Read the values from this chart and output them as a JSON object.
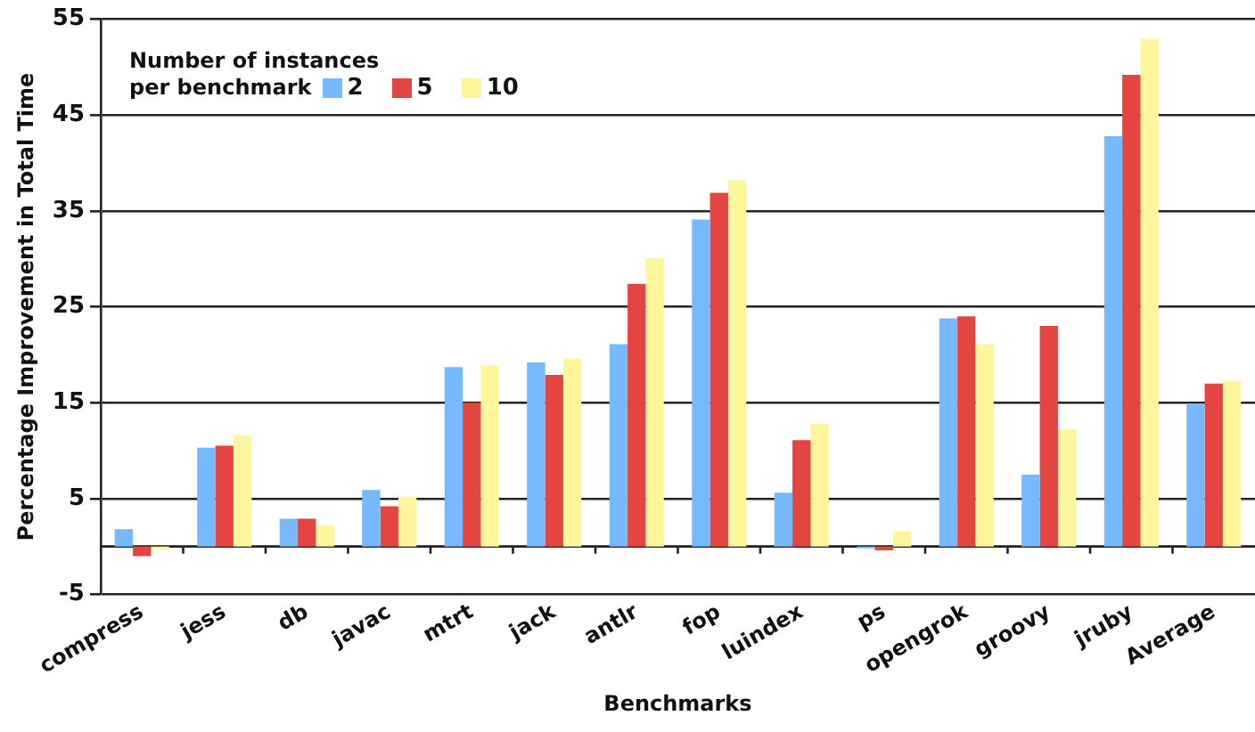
{
  "chart_data": {
    "type": "bar",
    "xlabel": "Benchmarks",
    "ylabel": "Percentage Improvement in Total Time",
    "legend_title": "Number of  instances per benchmark",
    "categories": [
      "compress",
      "jess",
      "db",
      "javac",
      "mtrt",
      "jack",
      "antlr",
      "fop",
      "luindex",
      "ps",
      "opengrok",
      "groovy",
      "jruby",
      "Average"
    ],
    "series": [
      {
        "name": "2",
        "color": "#77b9ff",
        "values": [
          1.8,
          10.3,
          2.9,
          5.9,
          18.7,
          19.2,
          21.1,
          34.1,
          5.6,
          -0.2,
          23.8,
          7.5,
          42.8,
          14.9
        ]
      },
      {
        "name": "5",
        "color": "#e54540",
        "values": [
          -1.0,
          10.5,
          2.9,
          4.2,
          15.0,
          17.9,
          27.4,
          36.9,
          11.1,
          -0.4,
          24.0,
          23.0,
          49.2,
          17.0
        ]
      },
      {
        "name": "10",
        "color": "#fff59d",
        "values": [
          -0.3,
          11.6,
          2.2,
          5.2,
          18.9,
          19.6,
          30.1,
          38.2,
          12.8,
          1.6,
          21.1,
          12.2,
          53.0,
          17.3
        ]
      }
    ],
    "ylim": [
      -5,
      55
    ],
    "yticks": [
      -5,
      5,
      15,
      25,
      35,
      45,
      55
    ],
    "grid": "y",
    "legend": "top left"
  }
}
